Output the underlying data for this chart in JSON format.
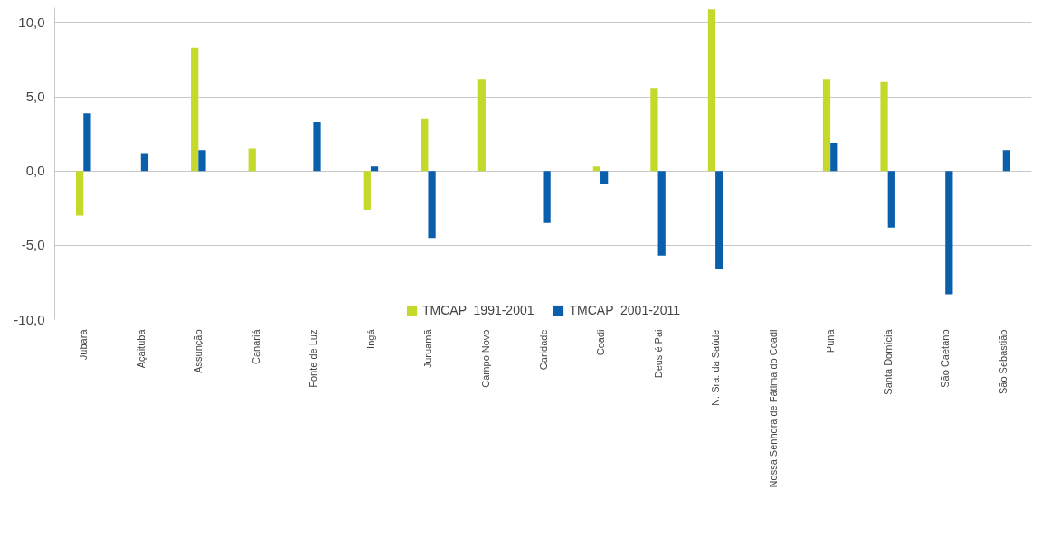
{
  "chart_data": {
    "type": "bar",
    "categories": [
      "Jubará",
      "Açaituba",
      "Assunção",
      "Canariá",
      "Fonte de Luz",
      "Ingá",
      "Juruamã",
      "Campo Novo",
      "Caridade",
      "Coadi",
      "Deus é Pai",
      "N. Sra. da Saúde",
      "Nossa Senhora de Fátima do Coadi",
      "Punã",
      "Santa Domícia",
      "São Caetano",
      "São Sebastião"
    ],
    "series": [
      {
        "name": "TMCAP  1991-2001",
        "color": "#c5d92d",
        "values": [
          -3.0,
          null,
          8.3,
          1.5,
          null,
          -2.6,
          3.5,
          6.2,
          null,
          0.3,
          5.6,
          10.9,
          null,
          6.2,
          6.0,
          null,
          null
        ]
      },
      {
        "name": "TMCAP  2001-2011",
        "color": "#0a5fad",
        "values": [
          3.9,
          1.2,
          1.4,
          null,
          3.3,
          0.3,
          -4.5,
          null,
          -3.5,
          -0.9,
          -5.7,
          -6.6,
          null,
          1.9,
          -3.8,
          -8.3,
          1.4
        ]
      }
    ],
    "ylim": [
      -10,
      11
    ],
    "yticks": [
      {
        "value": -10,
        "label": "-10,0"
      },
      {
        "value": -5,
        "label": "-5,0"
      },
      {
        "value": 0,
        "label": "0,0"
      },
      {
        "value": 5,
        "label": "5,0"
      },
      {
        "value": 10,
        "label": "10,0"
      }
    ],
    "grid": "y",
    "legend": "bottom"
  }
}
